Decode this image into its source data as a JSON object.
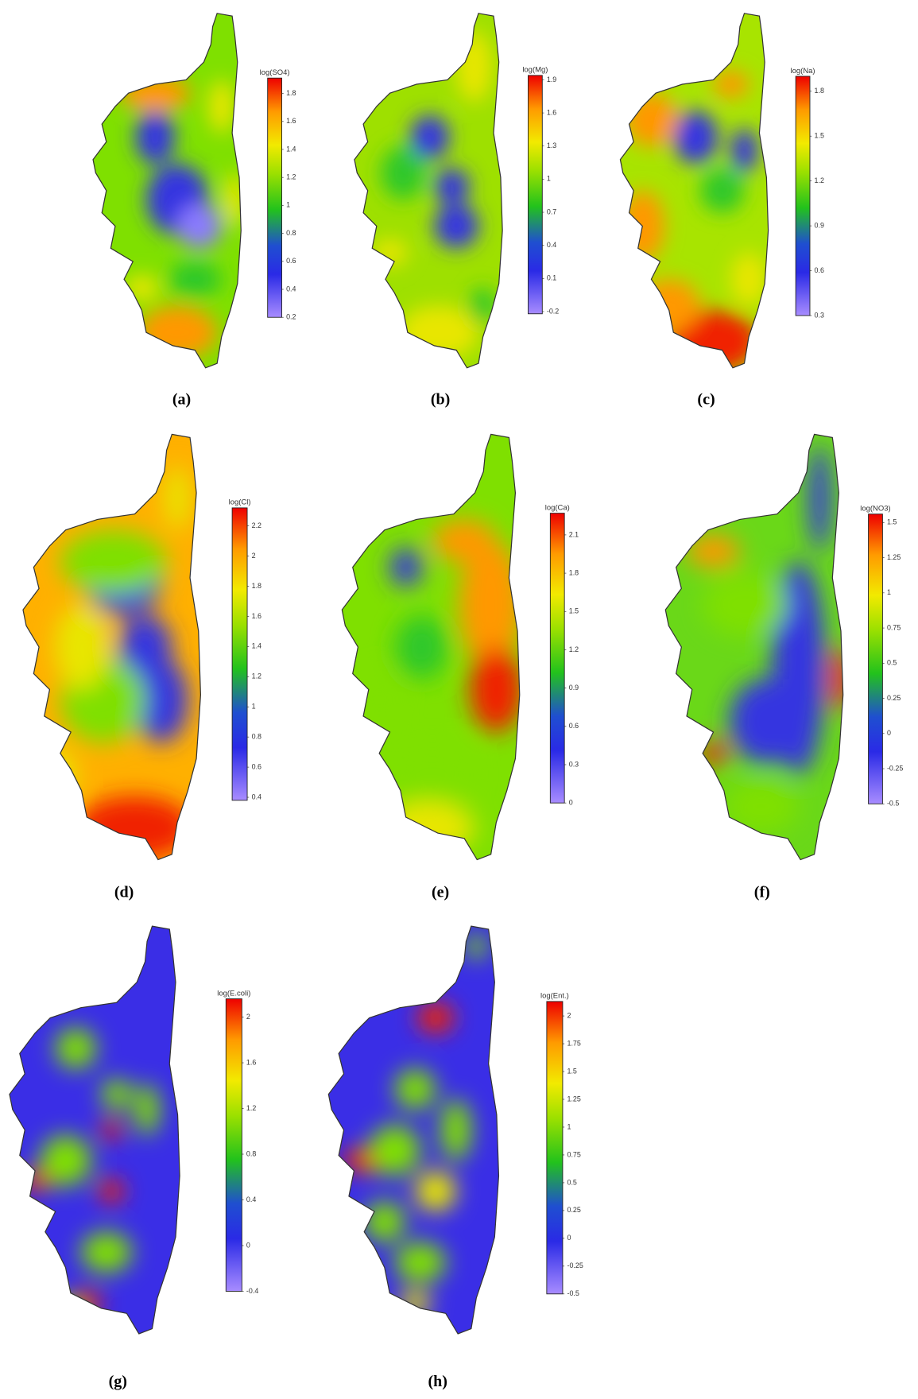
{
  "panels": [
    {
      "label": "(a)",
      "colorbar": {
        "title": "log(SO4)",
        "lim": [
          0.2,
          1.91
        ],
        "ticks": [
          1.8,
          1.6,
          1.4,
          1.2,
          1,
          0.8,
          0.6,
          0.4,
          0.2
        ]
      }
    },
    {
      "label": "(b)",
      "colorbar": {
        "title": "log(Mg)",
        "lim": [
          -0.22,
          1.94
        ],
        "ticks": [
          1.9,
          1.6,
          1.3,
          1,
          0.7,
          0.4,
          0.1,
          -0.2
        ]
      }
    },
    {
      "label": "(c)",
      "colorbar": {
        "title": "log(Na)",
        "lim": [
          0.3,
          1.9
        ],
        "ticks": [
          1.8,
          1.5,
          1.2,
          0.9,
          0.6,
          0.3
        ]
      }
    },
    {
      "label": "(d)",
      "colorbar": {
        "title": "log(Cl)",
        "lim": [
          0.38,
          2.32
        ],
        "ticks": [
          2.2,
          2,
          1.8,
          1.6,
          1.4,
          1.2,
          1,
          0.8,
          0.6,
          0.4
        ]
      }
    },
    {
      "label": "(e)",
      "colorbar": {
        "title": "log(Ca)",
        "lim": [
          0,
          2.27
        ],
        "ticks": [
          2.1,
          1.8,
          1.5,
          1.2,
          0.9,
          0.6,
          0.3,
          0
        ]
      }
    },
    {
      "label": "(f)",
      "colorbar": {
        "title": "log(NO3)",
        "lim": [
          -0.5,
          1.56
        ],
        "ticks": [
          1.5,
          1.25,
          1,
          0.75,
          0.5,
          0.25,
          0,
          -0.25,
          -0.5
        ]
      }
    },
    {
      "label": "(g)",
      "colorbar": {
        "title": "log(E.coli)",
        "lim": [
          -0.4,
          2.16
        ],
        "ticks": [
          2,
          1.6,
          1.2,
          0.8,
          0.4,
          0,
          -0.4
        ]
      }
    },
    {
      "label": "(h)",
      "colorbar": {
        "title": "log(Ent.)",
        "lim": [
          -0.5,
          2.13
        ],
        "ticks": [
          2,
          1.75,
          1.5,
          1.25,
          1,
          0.75,
          0.5,
          0.25,
          0,
          -0.25,
          -0.5
        ]
      }
    }
  ]
}
